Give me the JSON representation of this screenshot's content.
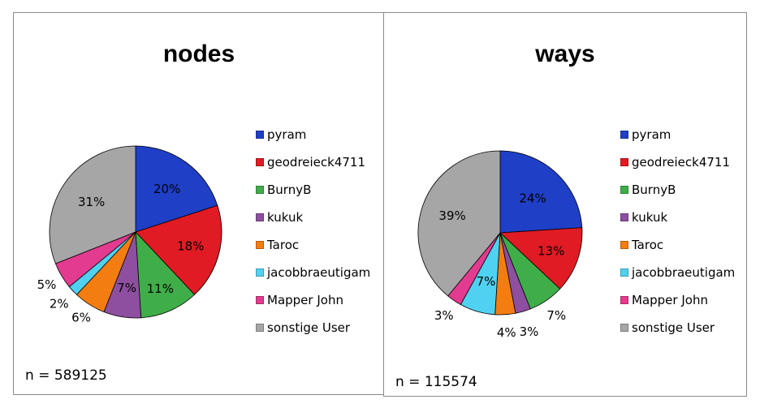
{
  "colors": [
    "#1f3fc6",
    "#e01b24",
    "#3fae49",
    "#8e4fa0",
    "#f47d12",
    "#4fd2f2",
    "#e23b8f",
    "#a6a6a6"
  ],
  "chart_data": [
    {
      "type": "pie",
      "title": "nodes",
      "labels": [
        "pyram",
        "geodreieck4711",
        "BurnyB",
        "kukuk",
        "Taroc",
        "jacobbraeutigam",
        "Mapper John",
        "sonstige User"
      ],
      "values": [
        20,
        18,
        11,
        7,
        6,
        2,
        5,
        31
      ],
      "value_labels": [
        "20%",
        "18%",
        "11%",
        "7%",
        "6%",
        "2%",
        "5%",
        "31%"
      ],
      "legend": "right",
      "note": "n = 589125"
    },
    {
      "type": "pie",
      "title": "ways",
      "labels": [
        "pyram",
        "geodreieck4711",
        "BurnyB",
        "kukuk",
        "Taroc",
        "jacobbraeutigam",
        "Mapper John",
        "sonstige User"
      ],
      "values": [
        24,
        13,
        7,
        3,
        4,
        7,
        3,
        39
      ],
      "value_labels": [
        "24%",
        "13%",
        "7%",
        "3%",
        "4%",
        "7%",
        "3%",
        "39%"
      ],
      "legend": "right",
      "note": "n = 115574"
    }
  ]
}
